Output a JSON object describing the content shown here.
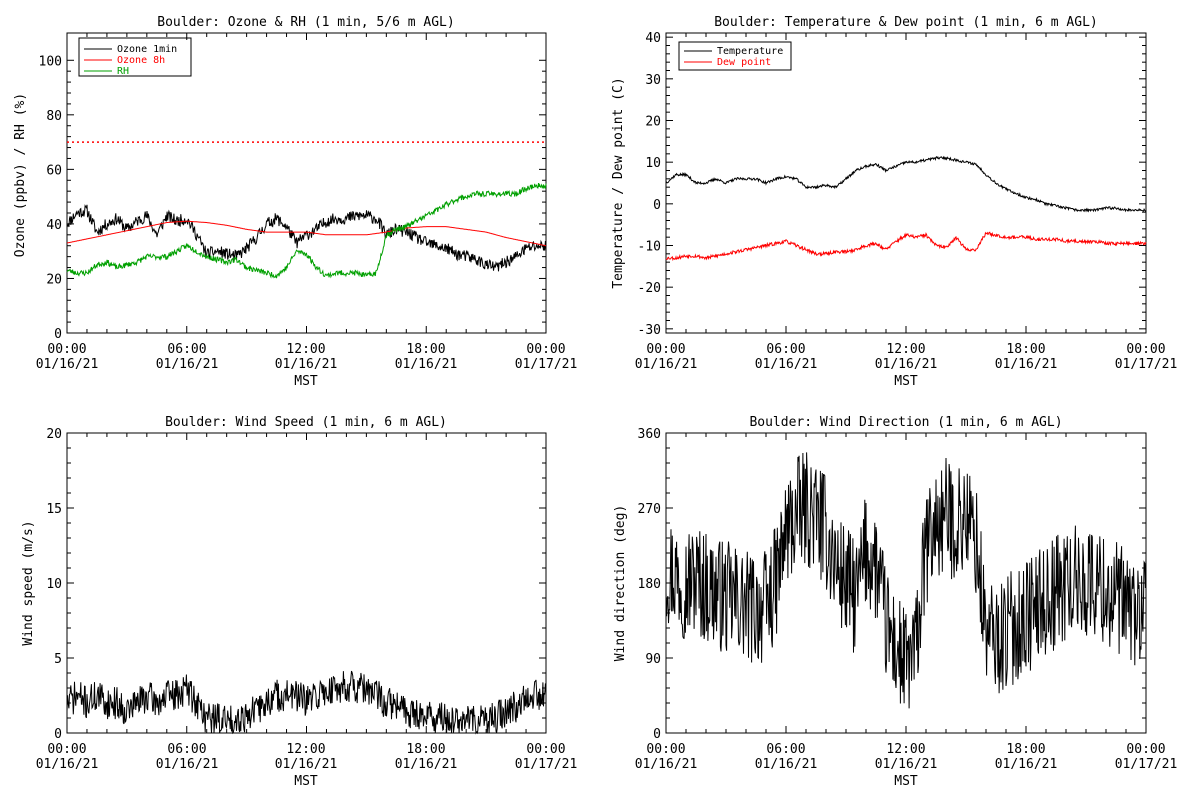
{
  "chart_data": [
    {
      "type": "line",
      "title": "Boulder: Ozone & RH (1 min, 5/6 m AGL)",
      "xlabel": "MST",
      "ylabel": "Ozone (ppbv) / RH (%)",
      "xlim": [
        0,
        24
      ],
      "ylim": [
        0,
        110
      ],
      "yticks": [
        0,
        20,
        40,
        60,
        80,
        100
      ],
      "xticks": [
        {
          "value": 0,
          "time": "00:00",
          "date": "01/16/21"
        },
        {
          "value": 6,
          "time": "06:00",
          "date": "01/16/21"
        },
        {
          "value": 12,
          "time": "12:00",
          "date": "01/16/21"
        },
        {
          "value": 18,
          "time": "18:00",
          "date": "01/16/21"
        },
        {
          "value": 24,
          "time": "00:00",
          "date": "01/17/21"
        }
      ],
      "legend_position": "top-left",
      "reference_lines": [
        {
          "y": 70,
          "color": "#ff0000",
          "style": "dotted"
        }
      ],
      "series": [
        {
          "name": "Ozone 1min",
          "color": "#000000",
          "noise": 2.2,
          "seed": 11,
          "x": [
            0,
            0.5,
            1,
            1.5,
            2,
            2.5,
            3,
            3.5,
            4,
            4.5,
            5,
            5.5,
            6,
            6.5,
            7,
            7.5,
            8,
            8.5,
            9,
            9.5,
            10,
            10.5,
            11,
            11.5,
            12,
            12.5,
            13,
            13.5,
            14,
            14.5,
            15,
            15.5,
            16,
            16.5,
            17,
            17.5,
            18,
            18.5,
            19,
            19.5,
            20,
            20.5,
            21,
            21.5,
            22,
            22.5,
            23,
            23.5,
            24
          ],
          "y": [
            40,
            44,
            45,
            37,
            40,
            42,
            38,
            41,
            43,
            36,
            43,
            41,
            42,
            36,
            29,
            30,
            29,
            28,
            31,
            35,
            40,
            42,
            39,
            33,
            36,
            38,
            41,
            42,
            42,
            43,
            43,
            42,
            36,
            38,
            37,
            35,
            33,
            32,
            31,
            29,
            28,
            27,
            25,
            24,
            26,
            28,
            31,
            32,
            32
          ]
        },
        {
          "name": "Ozone 8h",
          "color": "#ff0000",
          "noise": 0,
          "seed": 0,
          "x": [
            0,
            1,
            2,
            3,
            4,
            5,
            6,
            7,
            8,
            9,
            10,
            11,
            12,
            13,
            14,
            15,
            16,
            17,
            18,
            19,
            20,
            21,
            22,
            23,
            24
          ],
          "y": [
            33,
            34.5,
            36,
            37.5,
            39,
            40.5,
            41,
            40.5,
            39.5,
            38,
            37,
            37,
            37,
            36,
            36,
            36,
            37,
            38.5,
            39,
            39,
            38,
            37,
            35,
            33.5,
            32
          ]
        },
        {
          "name": "RH",
          "color": "#00a000",
          "noise": 1.0,
          "seed": 23,
          "x": [
            0,
            0.5,
            1,
            1.5,
            2,
            2.5,
            3,
            3.5,
            4,
            4.5,
            5,
            5.5,
            6,
            6.5,
            7,
            7.5,
            8,
            8.5,
            9,
            9.5,
            10,
            10.5,
            11,
            11.5,
            12,
            12.5,
            13,
            13.5,
            14,
            14.5,
            15,
            15.5,
            16,
            16.5,
            17,
            17.5,
            18,
            18.5,
            19,
            19.5,
            20,
            20.5,
            21,
            21.5,
            22,
            22.5,
            23,
            23.5,
            24
          ],
          "y": [
            23,
            22,
            22,
            25,
            26,
            24,
            25,
            26,
            28,
            28,
            28,
            30,
            32,
            30,
            28,
            27,
            26,
            27,
            24,
            23,
            22,
            21,
            24,
            30,
            29,
            24,
            21,
            22,
            22,
            22,
            21,
            22,
            36,
            38,
            39,
            41,
            43,
            45,
            47,
            49,
            50,
            51,
            51,
            51,
            51,
            51,
            53,
            54,
            54
          ]
        }
      ]
    },
    {
      "type": "line",
      "title": "Boulder: Temperature & Dew point (1 min, 6 m AGL)",
      "xlabel": "MST",
      "ylabel": "Temperature / Dew point (C)",
      "xlim": [
        0,
        24
      ],
      "ylim": [
        -31,
        41
      ],
      "yticks": [
        -30,
        -20,
        -10,
        0,
        10,
        20,
        30,
        40
      ],
      "xticks": [
        {
          "value": 0,
          "time": "00:00",
          "date": "01/16/21"
        },
        {
          "value": 6,
          "time": "06:00",
          "date": "01/16/21"
        },
        {
          "value": 12,
          "time": "12:00",
          "date": "01/16/21"
        },
        {
          "value": 18,
          "time": "18:00",
          "date": "01/16/21"
        },
        {
          "value": 24,
          "time": "00:00",
          "date": "01/17/21"
        }
      ],
      "legend_position": "top-left",
      "reference_lines": [],
      "series": [
        {
          "name": "Temperature",
          "color": "#000000",
          "noise": 0.3,
          "seed": 37,
          "x": [
            0,
            0.5,
            1,
            1.5,
            2,
            2.5,
            3,
            3.5,
            4,
            4.5,
            5,
            5.5,
            6,
            6.5,
            7,
            7.5,
            8,
            8.5,
            9,
            9.5,
            10,
            10.5,
            11,
            11.5,
            12,
            12.5,
            13,
            13.5,
            14,
            14.5,
            15,
            15.5,
            16,
            16.5,
            17,
            17.5,
            18,
            18.5,
            19,
            19.5,
            20,
            20.5,
            21,
            21.5,
            22,
            22.5,
            23,
            23.5,
            24
          ],
          "y": [
            5,
            7,
            7,
            5,
            5,
            6,
            5,
            6,
            6,
            6,
            5,
            6,
            6.5,
            6,
            4,
            4,
            4.5,
            4,
            6,
            8,
            9,
            9.5,
            8,
            9,
            10,
            10,
            10.5,
            11,
            11,
            10.5,
            10,
            9.5,
            7,
            5,
            3.5,
            2.5,
            1.5,
            1,
            0,
            -0.5,
            -1,
            -1.5,
            -1.5,
            -1.5,
            -1,
            -1,
            -1.5,
            -1.5,
            -1.5
          ]
        },
        {
          "name": "Dew point",
          "color": "#ff0000",
          "noise": 0.4,
          "seed": 53,
          "x": [
            0,
            0.5,
            1,
            1.5,
            2,
            2.5,
            3,
            3.5,
            4,
            4.5,
            5,
            5.5,
            6,
            6.5,
            7,
            7.5,
            8,
            8.5,
            9,
            9.5,
            10,
            10.5,
            11,
            11.5,
            12,
            12.5,
            13,
            13.5,
            14,
            14.5,
            15,
            15.5,
            16,
            16.5,
            17,
            17.5,
            18,
            18.5,
            19,
            19.5,
            20,
            20.5,
            21,
            21.5,
            22,
            22.5,
            23,
            23.5,
            24
          ],
          "y": [
            -13,
            -13,
            -12.5,
            -12.5,
            -13,
            -12.5,
            -12,
            -11.5,
            -11,
            -10.5,
            -10,
            -9.5,
            -9,
            -10,
            -11,
            -12,
            -12,
            -11.5,
            -11.5,
            -11,
            -10,
            -9.5,
            -11,
            -9,
            -7.5,
            -8,
            -7.5,
            -10,
            -10.5,
            -8,
            -11,
            -11,
            -7,
            -7.5,
            -8,
            -8,
            -8,
            -8.5,
            -8.5,
            -8.5,
            -9,
            -9,
            -9,
            -9,
            -9.5,
            -9.5,
            -9.5,
            -9.5,
            -9.5
          ]
        }
      ]
    },
    {
      "type": "line",
      "title": "Boulder: Wind Speed (1 min, 6 m AGL)",
      "xlabel": "MST",
      "ylabel": "Wind speed (m/s)",
      "xlim": [
        0,
        24
      ],
      "ylim": [
        0,
        20
      ],
      "yticks": [
        0,
        5,
        10,
        15,
        20
      ],
      "xticks": [
        {
          "value": 0,
          "time": "00:00",
          "date": "01/16/21"
        },
        {
          "value": 6,
          "time": "06:00",
          "date": "01/16/21"
        },
        {
          "value": 12,
          "time": "12:00",
          "date": "01/16/21"
        },
        {
          "value": 18,
          "time": "18:00",
          "date": "01/16/21"
        },
        {
          "value": 24,
          "time": "00:00",
          "date": "01/17/21"
        }
      ],
      "legend_position": "none",
      "reference_lines": [],
      "series": [
        {
          "name": "",
          "color": "#000000",
          "noise": 1.1,
          "seed": 71,
          "floor": 0,
          "x": [
            0,
            0.5,
            1,
            1.5,
            2,
            2.5,
            3,
            3.5,
            4,
            4.5,
            5,
            5.5,
            6,
            6.5,
            7,
            7.5,
            8,
            8.5,
            9,
            9.5,
            10,
            10.5,
            11,
            11.5,
            12,
            12.5,
            13,
            13.5,
            14,
            14.5,
            15,
            15.5,
            16,
            16.5,
            17,
            17.5,
            18,
            18.5,
            19,
            19.5,
            20,
            20.5,
            21,
            21.5,
            22,
            22.5,
            23,
            23.5,
            24
          ],
          "y": [
            2,
            2.5,
            2,
            2.5,
            2,
            2,
            1.5,
            2,
            2.5,
            2,
            2.5,
            2.5,
            3,
            2,
            1,
            1,
            0.8,
            1,
            1.2,
            1.5,
            2,
            2.5,
            2.5,
            2.5,
            2,
            2.5,
            2.8,
            3,
            3.2,
            3,
            2.8,
            2.5,
            2,
            1.8,
            1.5,
            1.3,
            1.2,
            1.0,
            0.9,
            0.8,
            0.8,
            0.7,
            0.8,
            1.0,
            1.3,
            1.8,
            2.5,
            2.8,
            2.2
          ]
        }
      ]
    },
    {
      "type": "line",
      "title": "Boulder: Wind Direction (1 min, 6 m AGL)",
      "xlabel": "MST",
      "ylabel": "Wind direction (deg)",
      "xlim": [
        0,
        24
      ],
      "ylim": [
        0,
        360
      ],
      "yticks": [
        0,
        90,
        180,
        270,
        360
      ],
      "xticks": [
        {
          "value": 0,
          "time": "00:00",
          "date": "01/16/21"
        },
        {
          "value": 6,
          "time": "06:00",
          "date": "01/16/21"
        },
        {
          "value": 12,
          "time": "12:00",
          "date": "01/16/21"
        },
        {
          "value": 18,
          "time": "18:00",
          "date": "01/16/21"
        },
        {
          "value": 24,
          "time": "00:00",
          "date": "01/17/21"
        }
      ],
      "legend_position": "none",
      "reference_lines": [],
      "series": [
        {
          "name": "",
          "color": "#000000",
          "noise": 70,
          "seed": 97,
          "floor": 0,
          "ceil": 360,
          "x": [
            0,
            0.5,
            1,
            1.5,
            2,
            2.5,
            3,
            3.5,
            4,
            4.5,
            5,
            5.5,
            6,
            6.5,
            7,
            7.5,
            8,
            8.5,
            9,
            9.5,
            10,
            10.5,
            11,
            11.5,
            12,
            12.5,
            13,
            13.5,
            14,
            14.5,
            15,
            15.5,
            16,
            16.5,
            17,
            17.5,
            18,
            18.5,
            19,
            19.5,
            20,
            20.5,
            21,
            21.5,
            22,
            22.5,
            23,
            23.5,
            24
          ],
          "y": [
            200,
            190,
            180,
            185,
            175,
            170,
            160,
            160,
            150,
            150,
            150,
            180,
            240,
            260,
            270,
            260,
            240,
            200,
            180,
            160,
            220,
            200,
            130,
            100,
            80,
            100,
            220,
            250,
            260,
            250,
            260,
            230,
            120,
            110,
            120,
            130,
            140,
            150,
            160,
            170,
            180,
            180,
            180,
            180,
            170,
            160,
            150,
            145,
            140
          ]
        }
      ]
    }
  ]
}
